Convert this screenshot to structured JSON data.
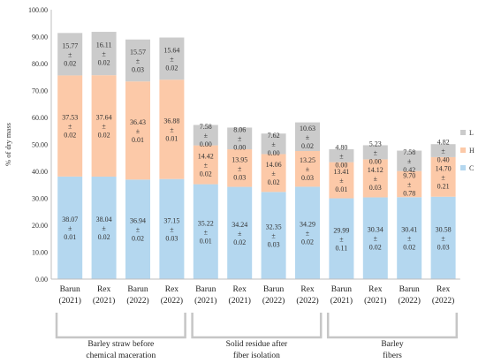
{
  "chart_data": {
    "type": "bar",
    "stacked": true,
    "ylabel": "% of dry mass",
    "ylim": [
      0,
      100
    ],
    "yticks": [
      "0.00",
      "10.00",
      "20.00",
      "30.00",
      "40.00",
      "50.00",
      "60.00",
      "70.00",
      "80.00",
      "90.00",
      "100.00"
    ],
    "grid": false,
    "legend_position": "right",
    "categories": [
      [
        "Barun",
        "(2021)"
      ],
      [
        "Rex",
        "(2021)"
      ],
      [
        "Barun",
        "(2022)"
      ],
      [
        "Rex",
        "(2022)"
      ],
      [
        "Barun",
        "(2021)"
      ],
      [
        "Rex",
        "(2021)"
      ],
      [
        "Barun",
        "(2022)"
      ],
      [
        "Rex",
        "(2022)"
      ],
      [
        "Barun",
        "(2021)"
      ],
      [
        "Rex",
        "(2021)"
      ],
      [
        "Barun",
        "(2022)"
      ],
      [
        "Rex",
        "(2022)"
      ]
    ],
    "groups": [
      {
        "lines": [
          "Barley straw before",
          "chemical maceration"
        ],
        "range": [
          0,
          3
        ]
      },
      {
        "lines": [
          "Solid residue after",
          "fiber isolation"
        ],
        "range": [
          4,
          7
        ]
      },
      {
        "lines": [
          "Barley",
          "fibers"
        ],
        "range": [
          8,
          11
        ]
      }
    ],
    "series": [
      {
        "name": "C",
        "color": "#b4d7ef",
        "values": [
          38.07,
          38.04,
          36.94,
          37.15,
          35.22,
          34.24,
          32.35,
          34.29,
          29.99,
          30.34,
          30.41,
          30.58
        ],
        "errors": [
          "0.01",
          "0.02",
          "0.02",
          "0.03",
          "0.01",
          "0.02",
          "0.03",
          "0.02",
          "0.11",
          "0.02",
          "0.02",
          "0.03"
        ],
        "value_labels": [
          "38.07",
          "38.04",
          "36.94",
          "37.15",
          "35.22",
          "34.24",
          "32.35",
          "34.29",
          "29.99",
          "30.34",
          "30.41",
          "30.58"
        ]
      },
      {
        "name": "H",
        "color": "#fcc9a8",
        "values": [
          37.53,
          37.64,
          36.43,
          36.88,
          14.42,
          13.95,
          14.06,
          13.25,
          13.41,
          14.12,
          9.7,
          14.7
        ],
        "errors": [
          "0.02",
          "0.02",
          "0.01",
          "0.01",
          "0.02",
          "0.03",
          "0.02",
          "0.03",
          "0.01",
          "0.03",
          "0.78",
          "0.21"
        ],
        "value_labels": [
          "37.53",
          "37.64",
          "36.43",
          "36.88",
          "14.42",
          "13.95",
          "14.06",
          "13.25",
          "13.41",
          "14.12",
          "9.70",
          "14.70"
        ]
      },
      {
        "name": "L",
        "color": "#cbcbcb",
        "values": [
          15.77,
          16.11,
          15.57,
          15.64,
          7.58,
          8.06,
          7.62,
          10.63,
          4.8,
          5.23,
          7.58,
          4.82
        ],
        "errors": [
          "0.02",
          "0.02",
          "0.03",
          "0.02",
          "0.00",
          "0.00",
          "0.00",
          "0.02",
          "0.00",
          "0.00",
          "0.42",
          "0.40"
        ],
        "value_labels": [
          "15.77",
          "16.11",
          "15.57",
          "15.64",
          "7.58",
          "8.06",
          "7.62",
          "10.63",
          "4.80",
          "5.23",
          "7.58",
          "4.82"
        ]
      }
    ],
    "pm_symbol": "±",
    "legend": [
      "L",
      "H",
      "C"
    ]
  }
}
